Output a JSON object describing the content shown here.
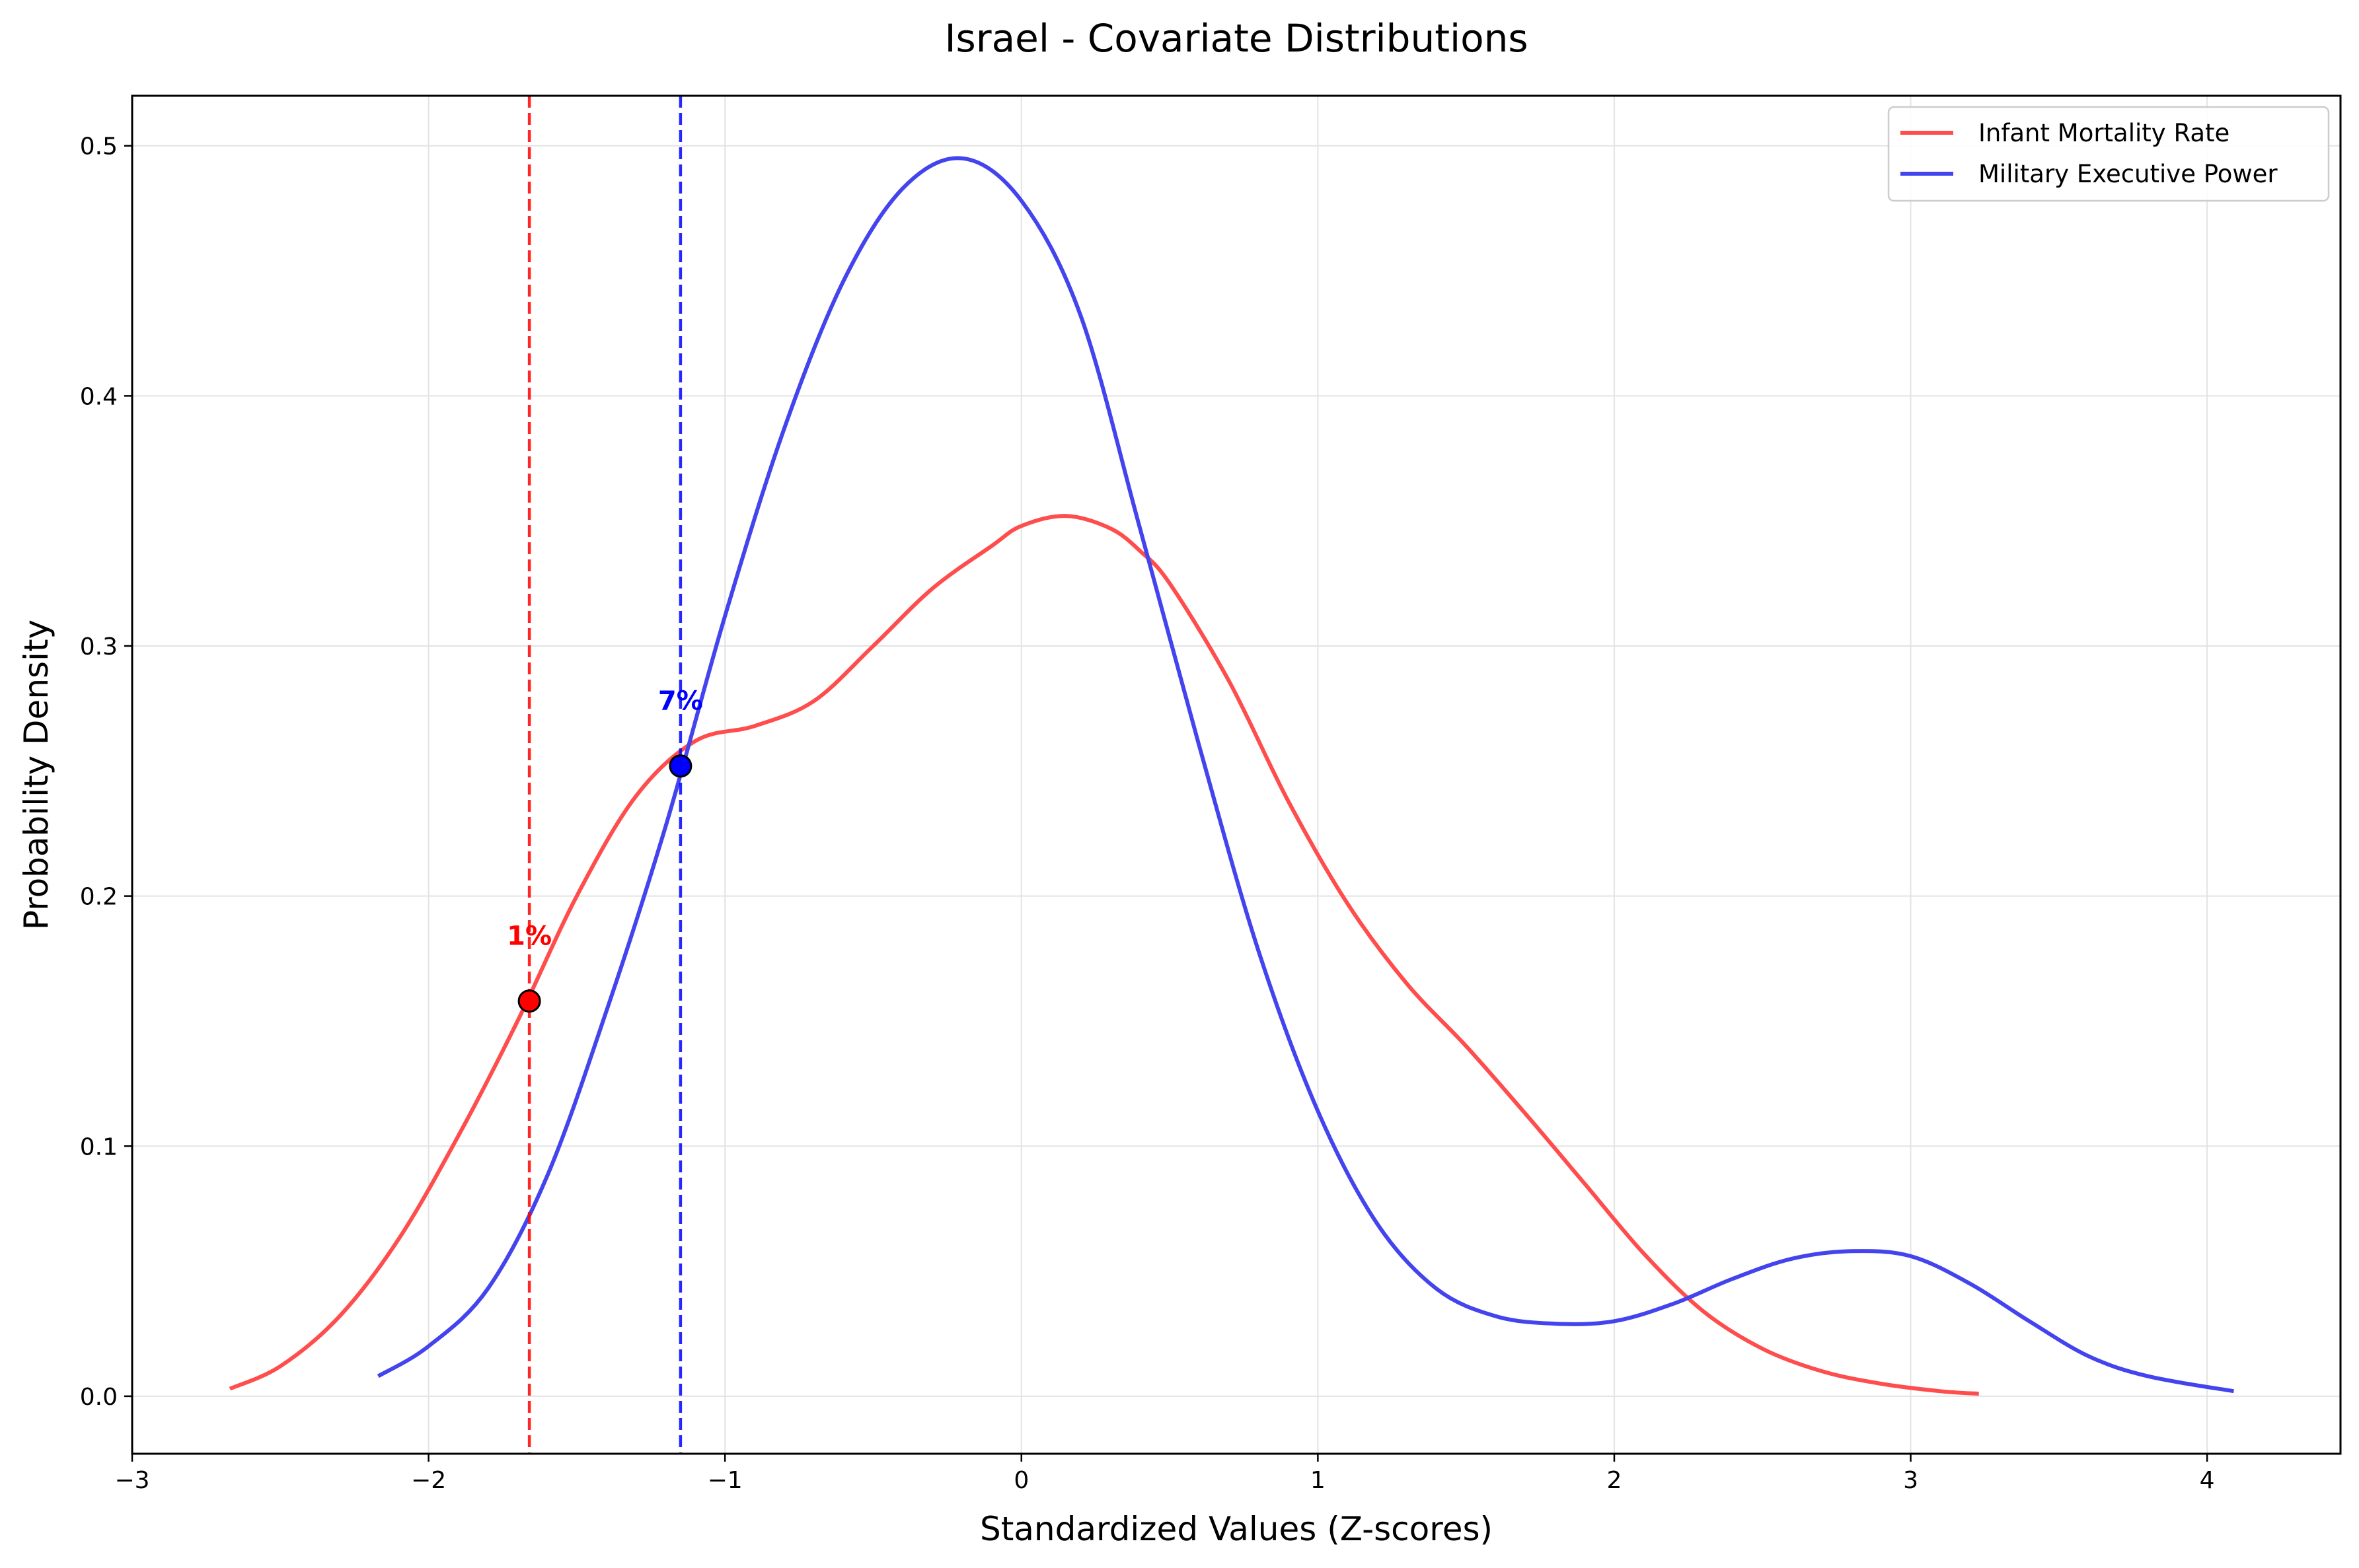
{
  "chart_data": {
    "type": "line",
    "title": "Israel - Covariate Distributions",
    "xlabel": "Standardized Values (Z-scores)",
    "ylabel": "Probability Density",
    "xlim": [
      -3,
      4.45
    ],
    "ylim": [
      -0.023,
      0.52
    ],
    "xticks": [
      -3,
      -2,
      -1,
      0,
      1,
      2,
      3,
      4
    ],
    "xtick_labels": [
      "−3",
      "−2",
      "−1",
      "0",
      "1",
      "2",
      "3",
      "4"
    ],
    "yticks": [
      0.0,
      0.1,
      0.2,
      0.3,
      0.4,
      0.5
    ],
    "ytick_labels": [
      "0.0",
      "0.1",
      "0.2",
      "0.3",
      "0.4",
      "0.5"
    ],
    "grid": true,
    "legend_position": "top-right",
    "series": [
      {
        "name": "Infant Mortality Rate",
        "color": "#ff4d4d",
        "x": [
          -2.67,
          -2.5,
          -2.3,
          -2.1,
          -1.9,
          -1.7,
          -1.5,
          -1.3,
          -1.1,
          -0.9,
          -0.7,
          -0.5,
          -0.3,
          -0.1,
          0.0,
          0.15,
          0.3,
          0.4,
          0.5,
          0.7,
          0.9,
          1.1,
          1.3,
          1.5,
          1.7,
          1.9,
          2.1,
          2.3,
          2.5,
          2.7,
          2.9,
          3.1,
          3.23
        ],
        "y": [
          0.003,
          0.012,
          0.032,
          0.063,
          0.104,
          0.15,
          0.2,
          0.24,
          0.262,
          0.268,
          0.278,
          0.3,
          0.323,
          0.34,
          0.348,
          0.352,
          0.347,
          0.338,
          0.325,
          0.286,
          0.238,
          0.197,
          0.165,
          0.14,
          0.113,
          0.085,
          0.057,
          0.034,
          0.019,
          0.01,
          0.005,
          0.002,
          0.001
        ]
      },
      {
        "name": "Military Executive Power",
        "color": "#4444ee",
        "x": [
          -2.17,
          -2.0,
          -1.8,
          -1.6,
          -1.4,
          -1.2,
          -1.0,
          -0.8,
          -0.6,
          -0.4,
          -0.2,
          0.0,
          0.2,
          0.4,
          0.6,
          0.8,
          1.0,
          1.2,
          1.4,
          1.6,
          1.8,
          2.0,
          2.2,
          2.4,
          2.6,
          2.8,
          3.0,
          3.2,
          3.4,
          3.6,
          3.8,
          4.09
        ],
        "y": [
          0.008,
          0.02,
          0.043,
          0.088,
          0.154,
          0.228,
          0.312,
          0.387,
          0.446,
          0.483,
          0.495,
          0.478,
          0.432,
          0.347,
          0.26,
          0.178,
          0.114,
          0.069,
          0.043,
          0.032,
          0.029,
          0.03,
          0.037,
          0.047,
          0.055,
          0.058,
          0.056,
          0.045,
          0.03,
          0.016,
          0.008,
          0.002
        ]
      }
    ],
    "markers": [
      {
        "series": "Infant Mortality Rate",
        "x": -1.66,
        "y": 0.158,
        "label": "1%",
        "color": "#ff0000"
      },
      {
        "series": "Military Executive Power",
        "x": -1.15,
        "y": 0.252,
        "label": "7%",
        "color": "#0000ff"
      }
    ]
  }
}
